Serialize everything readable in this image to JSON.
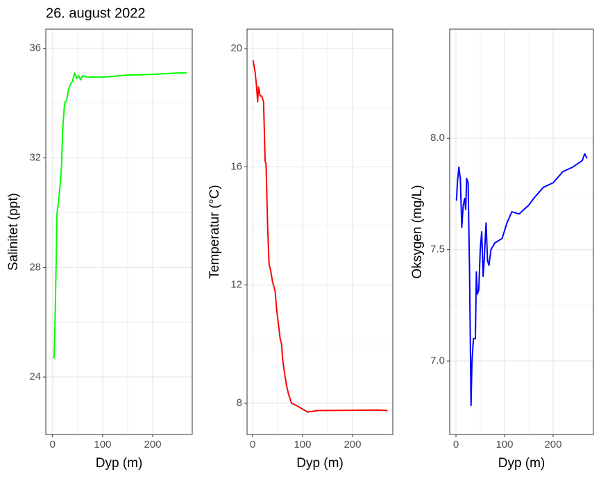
{
  "chart_data": [
    {
      "type": "line",
      "title": "26. august 2022",
      "x_label": "Dyp (m)",
      "y_label": "Salinitet (ppt)",
      "color": "#00ff00",
      "x": [
        1,
        3,
        5,
        7,
        9,
        12,
        15,
        18,
        20,
        24,
        28,
        32,
        36,
        40,
        44,
        48,
        52,
        56,
        60,
        70,
        100,
        150,
        200,
        250,
        268
      ],
      "values": [
        24.7,
        24.7,
        26,
        28,
        30,
        30.4,
        31,
        31.7,
        33,
        34,
        34.1,
        34.5,
        34.7,
        34.8,
        35.1,
        34.9,
        35,
        34.85,
        35,
        34.95,
        34.95,
        35.02,
        35.05,
        35.1,
        35.1
      ],
      "xlim": [
        -13.5,
        279
      ],
      "xticks": [
        0,
        100,
        200
      ],
      "ylim": [
        21.9,
        36.7
      ],
      "yticks": [
        24,
        28,
        32,
        36
      ],
      "grid": true
    },
    {
      "type": "line",
      "x_label": "Dyp (m)",
      "y_label": "Temperatur (°C)",
      "color": "#ff0000",
      "x": [
        1,
        5,
        8,
        10,
        12,
        15,
        18,
        22,
        25,
        27,
        30,
        33,
        36,
        40,
        45,
        48,
        50,
        55,
        58,
        60,
        64,
        68,
        72,
        78,
        90,
        100,
        110,
        130,
        200,
        250,
        270
      ],
      "values": [
        19.6,
        19.2,
        18.7,
        18.2,
        18.7,
        18.4,
        18.4,
        18.2,
        16.2,
        16.1,
        14,
        12.7,
        12.5,
        12.1,
        11.8,
        11.2,
        10.9,
        10.2,
        10,
        9.5,
        9,
        8.6,
        8.3,
        8.0,
        7.9,
        7.8,
        7.7,
        7.75,
        7.76,
        7.77,
        7.75
      ],
      "xlim": [
        -11.1,
        280.6
      ],
      "xticks": [
        0,
        100,
        200
      ],
      "ylim": [
        6.94,
        20.66
      ],
      "yticks": [
        8,
        12,
        16,
        20
      ],
      "grid": true
    },
    {
      "type": "line",
      "x_label": "Dyp (m)",
      "y_label": "Oksygen (mg/L)",
      "color": "#0000ff",
      "x": [
        1,
        3,
        6,
        9,
        12,
        15,
        18,
        20,
        22,
        25,
        28,
        31,
        33,
        36,
        40,
        42,
        44,
        47,
        50,
        53,
        56,
        58,
        62,
        65,
        68,
        72,
        80,
        95,
        105,
        115,
        130,
        150,
        160,
        180,
        200,
        220,
        240,
        260,
        265,
        270
      ],
      "values": [
        7.72,
        7.8,
        7.87,
        7.82,
        7.6,
        7.7,
        7.73,
        7.68,
        7.82,
        7.8,
        7.4,
        6.8,
        7.0,
        7.1,
        7.1,
        7.4,
        7.3,
        7.32,
        7.5,
        7.58,
        7.38,
        7.45,
        7.62,
        7.45,
        7.43,
        7.5,
        7.53,
        7.55,
        7.62,
        7.67,
        7.66,
        7.7,
        7.73,
        7.78,
        7.8,
        7.85,
        7.87,
        7.9,
        7.93,
        7.91
      ],
      "xlim": [
        -12.9,
        282.9
      ],
      "xticks": [
        0,
        100,
        200
      ],
      "ylim": [
        6.67,
        8.49
      ],
      "yticks": [
        {
          "value": 7.0,
          "label": "7.0"
        },
        7.5,
        {
          "value": 8.0,
          "label": "8.0"
        }
      ],
      "grid": true
    }
  ]
}
